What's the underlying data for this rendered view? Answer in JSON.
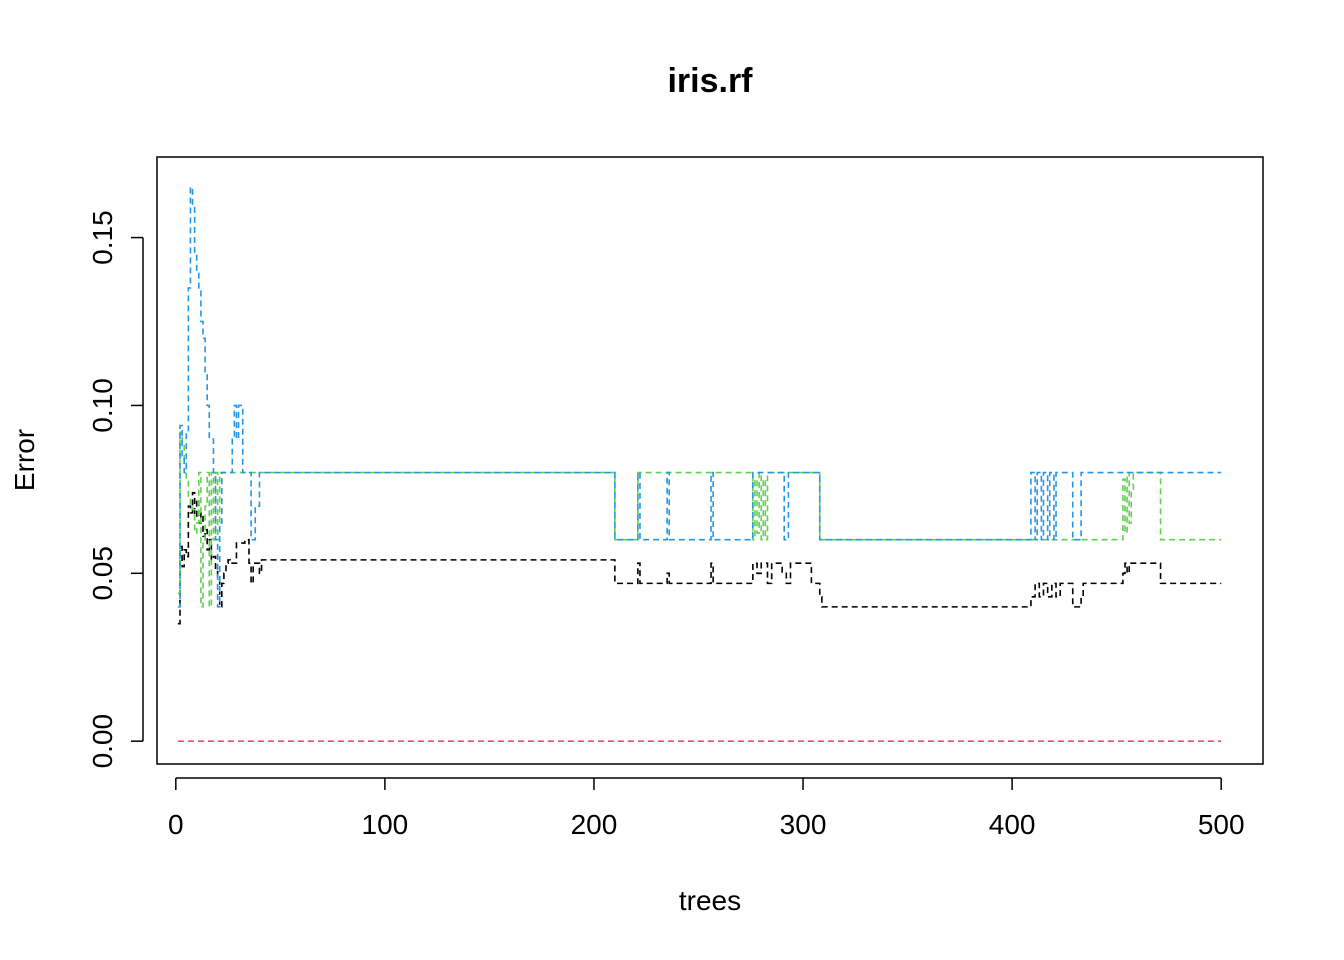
{
  "chart_data": {
    "type": "line",
    "title": "iris.rf",
    "xlabel": "trees",
    "ylabel": "Error",
    "xlim": [
      -9,
      520
    ],
    "ylim": [
      -0.0068,
      0.174
    ],
    "xticks": [
      0,
      100,
      200,
      300,
      400,
      500
    ],
    "xtick_labels": [
      "0",
      "100",
      "200",
      "300",
      "400",
      "500"
    ],
    "yticks": [
      0.0,
      0.05,
      0.1,
      0.15
    ],
    "ytick_labels": [
      "0.00",
      "0.05",
      "0.10",
      "0.15"
    ],
    "grid": false,
    "legend": "none",
    "series": [
      {
        "color": "#000000",
        "points": [
          [
            1,
            0.035
          ],
          [
            2,
            0.058
          ],
          [
            3,
            0.052
          ],
          [
            4,
            0.057
          ],
          [
            5,
            0.055
          ],
          [
            6,
            0.07
          ],
          [
            7,
            0.068
          ],
          [
            8,
            0.074
          ],
          [
            9,
            0.067
          ],
          [
            10,
            0.072
          ],
          [
            11,
            0.065
          ],
          [
            12,
            0.068
          ],
          [
            13,
            0.061
          ],
          [
            14,
            0.063
          ],
          [
            15,
            0.057
          ],
          [
            16,
            0.06
          ],
          [
            17,
            0.054
          ],
          [
            18,
            0.055
          ],
          [
            19,
            0.051
          ],
          [
            20,
            0.049
          ],
          [
            21,
            0.04
          ],
          [
            22,
            0.047
          ],
          [
            23,
            0.05
          ],
          [
            24,
            0.053
          ],
          [
            25,
            0.054
          ],
          [
            26,
            0.053
          ],
          [
            28,
            0.053
          ],
          [
            29,
            0.059
          ],
          [
            33,
            0.06
          ],
          [
            35,
            0.053
          ],
          [
            36,
            0.047
          ],
          [
            37,
            0.053
          ],
          [
            40,
            0.05
          ],
          [
            41,
            0.054
          ],
          [
            209,
            0.054
          ],
          [
            210,
            0.047
          ],
          [
            220,
            0.047
          ],
          [
            221,
            0.053
          ],
          [
            222,
            0.047
          ],
          [
            234,
            0.047
          ],
          [
            235,
            0.05
          ],
          [
            236,
            0.047
          ],
          [
            255,
            0.047
          ],
          [
            256,
            0.053
          ],
          [
            257,
            0.047
          ],
          [
            275,
            0.047
          ],
          [
            276,
            0.053
          ],
          [
            278,
            0.05
          ],
          [
            280,
            0.053
          ],
          [
            283,
            0.047
          ],
          [
            285,
            0.053
          ],
          [
            287,
            0.053
          ],
          [
            290,
            0.05
          ],
          [
            292,
            0.047
          ],
          [
            294,
            0.053
          ],
          [
            303,
            0.053
          ],
          [
            304,
            0.047
          ],
          [
            307,
            0.047
          ],
          [
            308,
            0.043
          ],
          [
            309,
            0.04
          ],
          [
            408,
            0.04
          ],
          [
            409,
            0.043
          ],
          [
            411,
            0.047
          ],
          [
            413,
            0.043
          ],
          [
            415,
            0.047
          ],
          [
            417,
            0.043
          ],
          [
            419,
            0.047
          ],
          [
            421,
            0.043
          ],
          [
            423,
            0.047
          ],
          [
            428,
            0.047
          ],
          [
            429,
            0.04
          ],
          [
            433,
            0.043
          ],
          [
            434,
            0.047
          ],
          [
            452,
            0.047
          ],
          [
            453,
            0.05
          ],
          [
            454,
            0.053
          ],
          [
            455,
            0.05
          ],
          [
            456,
            0.053
          ],
          [
            470,
            0.053
          ],
          [
            471,
            0.047
          ],
          [
            500,
            0.047
          ]
        ]
      },
      {
        "color": "#DF536B",
        "points": [
          [
            1,
            0.0
          ],
          [
            500,
            0.0
          ]
        ]
      },
      {
        "color": "#61D04F",
        "points": [
          [
            1,
            0.044
          ],
          [
            2,
            0.092
          ],
          [
            3,
            0.089
          ],
          [
            4,
            0.083
          ],
          [
            5,
            0.078
          ],
          [
            6,
            0.073
          ],
          [
            7,
            0.07
          ],
          [
            8,
            0.069
          ],
          [
            9,
            0.062
          ],
          [
            10,
            0.065
          ],
          [
            11,
            0.08
          ],
          [
            12,
            0.04
          ],
          [
            13,
            0.06
          ],
          [
            14,
            0.07
          ],
          [
            15,
            0.08
          ],
          [
            16,
            0.04
          ],
          [
            17,
            0.08
          ],
          [
            18,
            0.06
          ],
          [
            19,
            0.08
          ],
          [
            20,
            0.06
          ],
          [
            21,
            0.08
          ],
          [
            209,
            0.08
          ],
          [
            210,
            0.06
          ],
          [
            220,
            0.06
          ],
          [
            221,
            0.08
          ],
          [
            275,
            0.08
          ],
          [
            276,
            0.06
          ],
          [
            277,
            0.078
          ],
          [
            278,
            0.062
          ],
          [
            279,
            0.08
          ],
          [
            280,
            0.06
          ],
          [
            281,
            0.078
          ],
          [
            282,
            0.06
          ],
          [
            283,
            0.08
          ],
          [
            307,
            0.08
          ],
          [
            308,
            0.06
          ],
          [
            452,
            0.06
          ],
          [
            453,
            0.078
          ],
          [
            454,
            0.062
          ],
          [
            455,
            0.08
          ],
          [
            456,
            0.065
          ],
          [
            457,
            0.075
          ],
          [
            458,
            0.08
          ],
          [
            470,
            0.08
          ],
          [
            471,
            0.06
          ],
          [
            500,
            0.06
          ]
        ]
      },
      {
        "color": "#2297E6",
        "points": [
          [
            1,
            0.04
          ],
          [
            2,
            0.094
          ],
          [
            3,
            0.085
          ],
          [
            4,
            0.08
          ],
          [
            5,
            0.092
          ],
          [
            6,
            0.135
          ],
          [
            7,
            0.165
          ],
          [
            8,
            0.16
          ],
          [
            9,
            0.145
          ],
          [
            10,
            0.14
          ],
          [
            11,
            0.135
          ],
          [
            12,
            0.125
          ],
          [
            13,
            0.12
          ],
          [
            14,
            0.11
          ],
          [
            15,
            0.1
          ],
          [
            16,
            0.09
          ],
          [
            17,
            0.09
          ],
          [
            18,
            0.08
          ],
          [
            19,
            0.06
          ],
          [
            20,
            0.04
          ],
          [
            21,
            0.065
          ],
          [
            22,
            0.08
          ],
          [
            26,
            0.08
          ],
          [
            27,
            0.09
          ],
          [
            28,
            0.1
          ],
          [
            29,
            0.09
          ],
          [
            30,
            0.1
          ],
          [
            32,
            0.08
          ],
          [
            35,
            0.08
          ],
          [
            36,
            0.06
          ],
          [
            38,
            0.07
          ],
          [
            40,
            0.08
          ],
          [
            209,
            0.08
          ],
          [
            210,
            0.06
          ],
          [
            220,
            0.06
          ],
          [
            221,
            0.08
          ],
          [
            222,
            0.06
          ],
          [
            234,
            0.06
          ],
          [
            235,
            0.08
          ],
          [
            236,
            0.06
          ],
          [
            255,
            0.06
          ],
          [
            256,
            0.08
          ],
          [
            257,
            0.06
          ],
          [
            275,
            0.06
          ],
          [
            276,
            0.08
          ],
          [
            290,
            0.08
          ],
          [
            291,
            0.06
          ],
          [
            293,
            0.08
          ],
          [
            307,
            0.08
          ],
          [
            308,
            0.06
          ],
          [
            408,
            0.06
          ],
          [
            409,
            0.08
          ],
          [
            411,
            0.06
          ],
          [
            412,
            0.08
          ],
          [
            414,
            0.06
          ],
          [
            415,
            0.08
          ],
          [
            417,
            0.06
          ],
          [
            418,
            0.08
          ],
          [
            420,
            0.06
          ],
          [
            421,
            0.08
          ],
          [
            428,
            0.08
          ],
          [
            429,
            0.06
          ],
          [
            433,
            0.08
          ],
          [
            500,
            0.08
          ]
        ]
      }
    ]
  }
}
